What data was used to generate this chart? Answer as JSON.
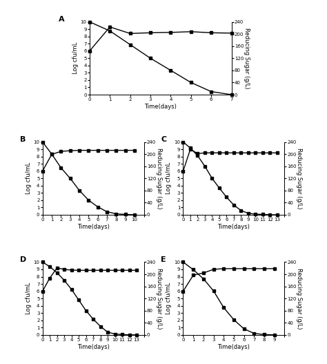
{
  "panels": {
    "A": {
      "label": "A",
      "time_cfu": [
        0,
        1,
        2,
        3,
        4,
        5,
        6,
        7
      ],
      "cfu": [
        6.0,
        9.3,
        8.4,
        8.5,
        8.55,
        8.65,
        8.5,
        8.45
      ],
      "time_sugar": [
        0,
        1,
        2,
        3,
        4,
        5,
        6,
        7
      ],
      "sugar": [
        240,
        210,
        165,
        120,
        80,
        40,
        10,
        0
      ],
      "xlim": [
        0,
        7
      ],
      "xticks": [
        0,
        1,
        2,
        3,
        4,
        5,
        6,
        7
      ],
      "xtick_labels": [
        "0",
        "1",
        "2",
        "3",
        "4",
        "5",
        "6",
        "7"
      ]
    },
    "B": {
      "label": "B",
      "time_cfu": [
        0,
        1,
        2,
        3,
        4,
        5,
        6,
        7,
        8,
        9,
        10
      ],
      "cfu": [
        6.0,
        8.3,
        8.7,
        8.8,
        8.85,
        8.85,
        8.85,
        8.85,
        8.85,
        8.85,
        8.85
      ],
      "time_sugar": [
        0,
        1,
        2,
        3,
        4,
        5,
        6,
        7,
        8,
        9,
        10
      ],
      "sugar": [
        240,
        200,
        155,
        120,
        80,
        48,
        26,
        10,
        3,
        1,
        0
      ],
      "xlim": [
        0,
        11
      ],
      "xticks": [
        0,
        1,
        2,
        3,
        4,
        5,
        6,
        7,
        8,
        9,
        10,
        11
      ],
      "xtick_labels": [
        "0",
        "1",
        "2",
        "3",
        "4",
        "5",
        "6",
        "7",
        "8",
        "9",
        "10",
        ""
      ]
    },
    "C": {
      "label": "C",
      "time_cfu": [
        0,
        1,
        2,
        3,
        4,
        5,
        6,
        7,
        8,
        9,
        10,
        11,
        12,
        13
      ],
      "cfu": [
        6.0,
        9.0,
        8.4,
        8.5,
        8.5,
        8.5,
        8.5,
        8.5,
        8.5,
        8.5,
        8.5,
        8.5,
        8.5,
        8.5
      ],
      "time_sugar": [
        0,
        1,
        2,
        3,
        4,
        5,
        6,
        7,
        8,
        9,
        10,
        11,
        12,
        13
      ],
      "sugar": [
        240,
        220,
        195,
        160,
        120,
        88,
        58,
        32,
        14,
        5,
        2,
        1,
        0,
        0
      ],
      "xlim": [
        0,
        14
      ],
      "xticks": [
        0,
        1,
        2,
        3,
        4,
        5,
        6,
        7,
        8,
        9,
        10,
        11,
        12,
        13,
        14
      ],
      "xtick_labels": [
        "0",
        "1",
        "2",
        "3",
        "4",
        "5",
        "6",
        "7",
        "8",
        "9",
        "10",
        "11",
        "12",
        "13",
        ""
      ]
    },
    "D": {
      "label": "D",
      "time_cfu": [
        0,
        1,
        2,
        3,
        4,
        5,
        6,
        7,
        8,
        9,
        10,
        11,
        12,
        13
      ],
      "cfu": [
        6.0,
        7.8,
        9.2,
        9.0,
        8.9,
        8.87,
        8.87,
        8.87,
        8.87,
        8.87,
        8.87,
        8.87,
        8.87,
        8.87
      ],
      "time_sugar": [
        0,
        1,
        2,
        3,
        4,
        5,
        6,
        7,
        8,
        9,
        10,
        11,
        12,
        13
      ],
      "sugar": [
        240,
        225,
        205,
        180,
        150,
        115,
        80,
        52,
        28,
        9,
        3,
        1,
        0,
        0
      ],
      "xlim": [
        0,
        14
      ],
      "xticks": [
        0,
        1,
        2,
        3,
        4,
        5,
        6,
        7,
        8,
        9,
        10,
        11,
        12,
        13,
        14
      ],
      "xtick_labels": [
        "0",
        "1",
        "2",
        "3",
        "4",
        "5",
        "6",
        "7",
        "8",
        "9",
        "10",
        "11",
        "12",
        "13",
        ""
      ]
    },
    "E": {
      "label": "E",
      "time_cfu": [
        0,
        1,
        2,
        3,
        4,
        5,
        6,
        7,
        8,
        9
      ],
      "cfu": [
        6.0,
        8.2,
        8.5,
        9.0,
        9.1,
        9.1,
        9.1,
        9.1,
        9.1,
        9.1
      ],
      "time_sugar": [
        0,
        1,
        2,
        3,
        4,
        5,
        6,
        7,
        8,
        9
      ],
      "sugar": [
        240,
        215,
        185,
        145,
        90,
        50,
        20,
        5,
        1,
        0
      ],
      "xlim": [
        0,
        10
      ],
      "xticks": [
        0,
        1,
        2,
        3,
        4,
        5,
        6,
        7,
        8,
        9,
        10
      ],
      "xtick_labels": [
        "0",
        "1",
        "2",
        "3",
        "4",
        "5",
        "6",
        "7",
        "8",
        "9",
        ""
      ]
    }
  },
  "ylim_cfu": [
    0,
    10
  ],
  "yticks_cfu": [
    0,
    1,
    2,
    3,
    4,
    5,
    6,
    7,
    8,
    9,
    10
  ],
  "ylim_sugar": [
    0,
    240
  ],
  "yticks_sugar": [
    0,
    40,
    80,
    120,
    160,
    200,
    240
  ],
  "ylabel_left": "Log cfu/mL",
  "ylabel_right": "Reducing Sugar (g/L)",
  "xlabel": "Time(days)",
  "marker": "s",
  "markersize": 3,
  "linewidth": 1.0,
  "color": "black",
  "fontsize_label": 6,
  "fontsize_tick": 5,
  "fontsize_panel": 8
}
